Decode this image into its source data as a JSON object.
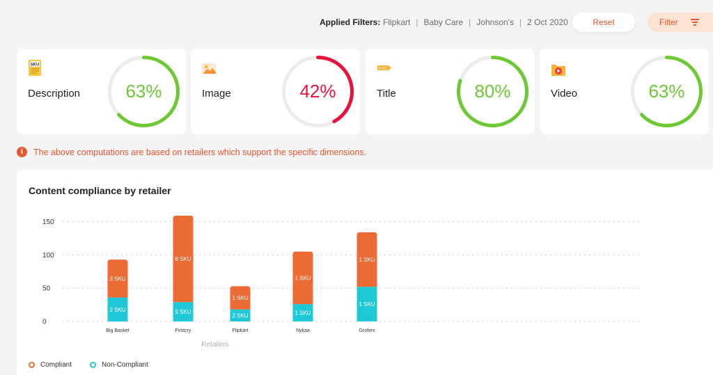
{
  "filters": {
    "label": "Applied Filters:",
    "items": [
      "Flipkart",
      "Baby Care",
      "Johnson's",
      "2 Oct 2020"
    ],
    "reset_label": "Reset",
    "filter_label": "Filter"
  },
  "cards": [
    {
      "label": "Description",
      "value_text": "63%",
      "value": 63,
      "color": "#6cc934",
      "icon": "sku-document-icon"
    },
    {
      "label": "Image",
      "value_text": "42%",
      "value": 42,
      "color": "#e8123a",
      "icon": "image-icon"
    },
    {
      "label": "Title",
      "value_text": "80%",
      "value": 80,
      "color": "#6cc934",
      "icon": "title-tag-icon"
    },
    {
      "label": "Video",
      "value_text": "63%",
      "value": 63,
      "color": "#6cc934",
      "icon": "video-icon"
    }
  ],
  "notice": {
    "text": "The above computations are based on retailers which support the specific dimensions.",
    "icon": "info-icon"
  },
  "chart_data": {
    "type": "bar",
    "stacked": true,
    "title": "Content compliance by retailer",
    "xlabel": "Retailers",
    "ylabel": "",
    "ylim": [
      0,
      160
    ],
    "yticks": [
      0,
      50,
      100,
      150
    ],
    "grid": true,
    "legend_position": "bottom-left",
    "categories": [
      "Big Basket",
      "Firstcry",
      "Flipkart",
      "Nykaa",
      "Grofers"
    ],
    "series": [
      {
        "name": "Non-Compliant",
        "color": "#1ec8d6",
        "values": [
          36,
          29,
          18,
          26,
          52
        ],
        "labels": [
          "2 SKU",
          "5 SKU",
          "2 SKU",
          "1 SKU",
          "1 SKU"
        ]
      },
      {
        "name": "Compliant",
        "color": "#ec6a33",
        "values": [
          57,
          130,
          35,
          79,
          82
        ],
        "labels": [
          "3 SKU",
          "8 SKU",
          "1 SKU",
          "1 SKU",
          "1 SKU"
        ]
      }
    ]
  }
}
